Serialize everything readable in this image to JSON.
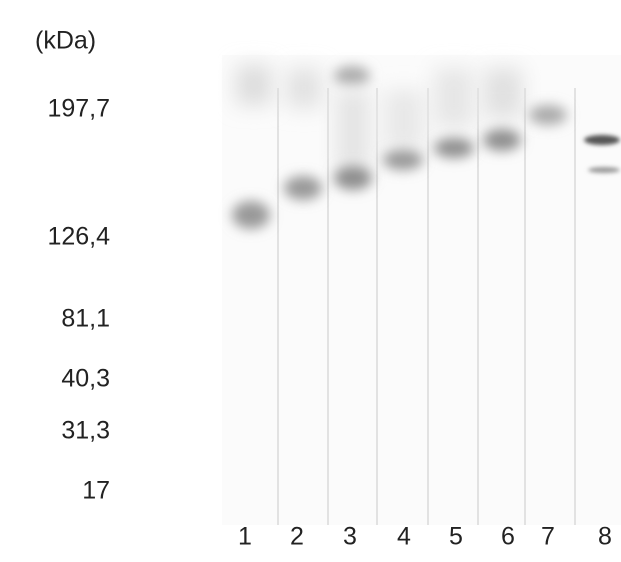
{
  "unit_label": "(kDa)",
  "markers": [
    "197,7",
    "126,4",
    "81,1",
    "40,3",
    "31,3",
    "17"
  ],
  "lanes": [
    "1",
    "2",
    "3",
    "4",
    "5",
    "6",
    "7",
    "8"
  ]
}
